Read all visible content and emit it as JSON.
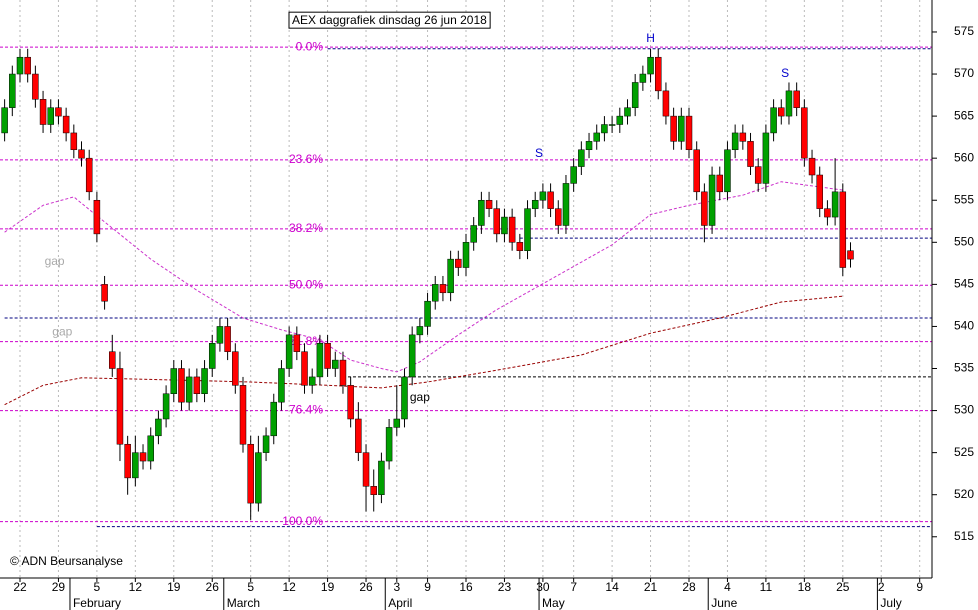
{
  "chart_data": {
    "type": "candlestick",
    "title": "AEX daggrafiek dinsdag 26 jun 2018",
    "copyright": "© ADN Beursanalyse",
    "up_color": "#00a000",
    "down_color": "#ff0000",
    "xlim": [
      -0.6,
      120.6
    ],
    "ylim": [
      510.1,
      578.8
    ],
    "yticks": [
      515,
      520,
      525,
      530,
      535,
      540,
      545,
      550,
      555,
      560,
      565,
      570,
      575
    ],
    "xticks": [
      {
        "value": 2,
        "label": "22"
      },
      {
        "value": 7,
        "label": "29"
      },
      {
        "value": 12,
        "label": "5"
      },
      {
        "value": 17,
        "label": "12"
      },
      {
        "value": 22,
        "label": "19"
      },
      {
        "value": 27,
        "label": "26"
      },
      {
        "value": 32,
        "label": "5"
      },
      {
        "value": 37,
        "label": "12"
      },
      {
        "value": 42,
        "label": "19"
      },
      {
        "value": 47,
        "label": "26"
      },
      {
        "value": 51,
        "label": "3"
      },
      {
        "value": 55,
        "label": "9"
      },
      {
        "value": 60,
        "label": "16"
      },
      {
        "value": 65,
        "label": "23"
      },
      {
        "value": 70,
        "label": "30"
      },
      {
        "value": 74,
        "label": "7"
      },
      {
        "value": 79,
        "label": "14"
      },
      {
        "value": 84,
        "label": "21"
      },
      {
        "value": 89,
        "label": "28"
      },
      {
        "value": 94,
        "label": "4"
      },
      {
        "value": 99,
        "label": "11"
      },
      {
        "value": 104,
        "label": "18"
      },
      {
        "value": 109,
        "label": "25"
      },
      {
        "value": 114,
        "label": "2"
      },
      {
        "value": 119,
        "label": "9"
      }
    ],
    "months": [
      {
        "value": 8.5,
        "label": "February"
      },
      {
        "value": 28.5,
        "label": "March"
      },
      {
        "value": 49.5,
        "label": "April"
      },
      {
        "value": 69.5,
        "label": "May"
      },
      {
        "value": 91.5,
        "label": "June"
      },
      {
        "value": 113.5,
        "label": "July"
      }
    ],
    "grid": true,
    "x": [
      0,
      1,
      2,
      3,
      4,
      5,
      6,
      7,
      8,
      9,
      10,
      11,
      12,
      13,
      14,
      15,
      16,
      17,
      18,
      19,
      20,
      21,
      22,
      23,
      24,
      25,
      26,
      27,
      28,
      29,
      30,
      31,
      32,
      33,
      34,
      35,
      36,
      37,
      38,
      39,
      40,
      41,
      42,
      43,
      44,
      45,
      46,
      47,
      48,
      49,
      50,
      51,
      52,
      53,
      54,
      55,
      56,
      57,
      58,
      59,
      60,
      61,
      62,
      63,
      64,
      65,
      66,
      67,
      68,
      69,
      70,
      71,
      72,
      73,
      74,
      75,
      76,
      77,
      78,
      79,
      80,
      81,
      82,
      83,
      84,
      85,
      86,
      87,
      88,
      89,
      90,
      91,
      92,
      93,
      94,
      95,
      96,
      97,
      98,
      99,
      100,
      101,
      102,
      103,
      104,
      105,
      106,
      107,
      108,
      109,
      110
    ],
    "open": [
      563,
      566,
      570,
      572,
      570,
      567,
      564,
      566,
      565,
      563,
      561,
      560,
      555,
      545,
      537,
      535,
      526,
      522,
      525,
      524,
      527,
      529,
      532,
      535,
      531,
      534,
      532,
      535,
      538,
      540,
      537,
      533,
      526,
      519,
      525,
      527,
      531,
      535,
      539,
      537,
      533,
      534,
      538,
      535,
      536,
      533,
      529,
      525,
      521,
      520,
      524,
      528,
      529,
      534,
      539,
      540,
      543,
      545,
      544,
      548,
      547,
      550,
      552,
      555,
      554,
      551,
      553,
      550,
      549,
      554,
      555,
      556,
      554,
      552,
      557,
      559,
      561,
      562,
      563,
      564,
      564,
      565,
      566,
      569,
      570,
      572,
      568,
      565,
      562,
      565,
      561,
      556,
      552,
      558,
      556,
      561,
      563,
      562,
      559,
      557,
      563,
      566,
      565,
      568,
      566,
      560,
      558,
      554,
      553,
      556,
      549
    ],
    "high": [
      567,
      571,
      573,
      573,
      571,
      568,
      567,
      567,
      566,
      564,
      562,
      561,
      556,
      546,
      539,
      537,
      527,
      527,
      526,
      528,
      530,
      533,
      536,
      536,
      535,
      535,
      536,
      539,
      541,
      541,
      538,
      534,
      527,
      527,
      528,
      532,
      536,
      540,
      540,
      538,
      535,
      539,
      539,
      537,
      537,
      534,
      531,
      526,
      523,
      525,
      529,
      533,
      535,
      540,
      541,
      544,
      546,
      546,
      549,
      549,
      551,
      553,
      556,
      556,
      555,
      554,
      554,
      551,
      555,
      556,
      557,
      557,
      555,
      558,
      560,
      562,
      563,
      564,
      565,
      565,
      566,
      567,
      570,
      571,
      573,
      573,
      569,
      566,
      566,
      566,
      562,
      557,
      559,
      559,
      562,
      564,
      564,
      563,
      560,
      564,
      567,
      567,
      569,
      569,
      567,
      561,
      559,
      555,
      560,
      557,
      550
    ],
    "low": [
      562,
      565,
      569,
      569,
      566,
      563,
      563,
      564,
      562,
      560,
      559,
      555,
      550,
      542,
      534,
      524,
      520,
      521,
      523,
      523,
      526,
      528,
      531,
      530,
      530,
      531,
      531,
      534,
      537,
      536,
      532,
      525,
      517,
      518,
      524,
      526,
      530,
      534,
      536,
      532,
      532,
      533,
      534,
      534,
      532,
      528,
      524,
      518,
      518,
      519,
      523,
      527,
      528,
      533,
      538,
      539,
      542,
      543,
      543,
      546,
      546,
      549,
      551,
      553,
      550,
      550,
      549,
      548,
      548,
      553,
      554,
      553,
      551,
      551,
      556,
      558,
      560,
      561,
      562,
      563,
      563,
      564,
      565,
      568,
      569,
      567,
      564,
      561,
      561,
      560,
      555,
      550,
      551,
      555,
      555,
      560,
      561,
      558,
      556,
      556,
      562,
      564,
      564,
      565,
      559,
      557,
      553,
      552,
      552,
      546,
      547
    ],
    "close": [
      566,
      570,
      572,
      570,
      567,
      564,
      566,
      565,
      563,
      561,
      560,
      556,
      551,
      543,
      535,
      526,
      522,
      525,
      524,
      527,
      529,
      532,
      535,
      531,
      534,
      532,
      535,
      538,
      540,
      537,
      533,
      526,
      519,
      525,
      527,
      531,
      535,
      539,
      537,
      533,
      534,
      538,
      535,
      536,
      533,
      529,
      525,
      521,
      520,
      524,
      528,
      529,
      534,
      539,
      540,
      543,
      545,
      544,
      548,
      547,
      550,
      552,
      555,
      554,
      551,
      553,
      550,
      549,
      554,
      555,
      556,
      554,
      552,
      557,
      559,
      561,
      562,
      563,
      564,
      564,
      565,
      566,
      569,
      570,
      572,
      568,
      565,
      562,
      565,
      561,
      556,
      552,
      558,
      556,
      561,
      563,
      562,
      559,
      557,
      563,
      566,
      565,
      568,
      566,
      560,
      558,
      554,
      553,
      556,
      547,
      548
    ],
    "series": [
      {
        "color": "#cc33cc",
        "x": [
          0,
          5,
          9,
          11,
          19,
          25,
          31,
          36,
          41,
          45,
          49,
          51,
          54,
          59,
          64,
          72,
          79,
          84,
          89,
          96,
          101,
          109
        ],
        "values": [
          551.2,
          554.4,
          555.4,
          553.9,
          548,
          544.3,
          541,
          539.6,
          538.4,
          536,
          535,
          534.6,
          535.8,
          539,
          542,
          546.1,
          549.7,
          553.3,
          554.4,
          555.6,
          557.2,
          556.2
        ]
      },
      {
        "color": "#990000",
        "x": [
          0,
          5,
          10,
          19,
          32,
          42,
          49,
          55,
          64,
          75,
          84,
          93,
          101,
          109
        ],
        "values": [
          530.7,
          533,
          533.9,
          533.7,
          533.4,
          533,
          532.7,
          533.4,
          534.8,
          536.6,
          539.2,
          541,
          542.9,
          543.6
        ]
      }
    ],
    "fib_color": "#cc00cc",
    "fib_levels": [
      {
        "value": 573.2,
        "label": "0.0%"
      },
      {
        "value": 559.8,
        "label": "23.6%"
      },
      {
        "value": 551.6,
        "label": "38.2%"
      },
      {
        "value": 544.9,
        "label": "50.0%"
      },
      {
        "value": 538.2,
        "label": "61.8%"
      },
      {
        "value": 530.0,
        "label": "76.4%"
      },
      {
        "value": 516.8,
        "label": "100.0%"
      }
    ],
    "hlines": [
      {
        "value": 573.0,
        "from": 42,
        "color": "#000080"
      },
      {
        "value": 550.5,
        "from": 67,
        "color": "#000080"
      },
      {
        "value": 541.0,
        "from": 0,
        "color": "#000080"
      },
      {
        "value": 534.0,
        "from": 44,
        "color": "#000000"
      },
      {
        "value": 516.2,
        "from": 12,
        "color": "#000080"
      }
    ],
    "annotations": [
      {
        "text": "gap",
        "x": 6.5,
        "y": 547.7,
        "color": "#aaaaaa"
      },
      {
        "text": "gap",
        "x": 7.5,
        "y": 539.3,
        "color": "#aaaaaa"
      },
      {
        "text": "gap",
        "x": 54,
        "y": 531.5,
        "color": "#000000"
      },
      {
        "text": "S",
        "x": 69.5,
        "y": 560.5,
        "color": "#0000cc"
      },
      {
        "text": "H",
        "x": 84,
        "y": 574.2,
        "color": "#0000cc"
      },
      {
        "text": "S",
        "x": 101.5,
        "y": 570.0,
        "color": "#0000cc"
      }
    ]
  }
}
